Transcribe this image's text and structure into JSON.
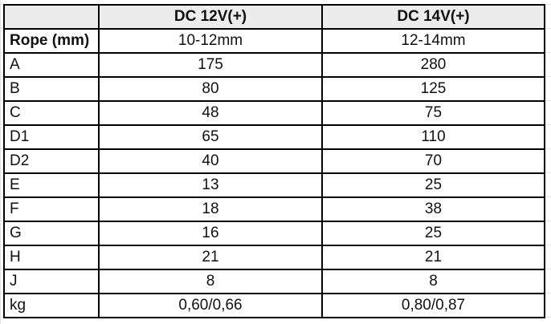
{
  "table": {
    "header": {
      "corner": "",
      "col1": "DC 12V(+)",
      "col2": "DC 14V(+)"
    },
    "rows": [
      {
        "label": "Rope (mm)",
        "v12": "10-12mm",
        "v14": "12-14mm"
      },
      {
        "label": "A",
        "v12": "175",
        "v14": "280"
      },
      {
        "label": "B",
        "v12": "80",
        "v14": "125"
      },
      {
        "label": "C",
        "v12": "48",
        "v14": "75"
      },
      {
        "label": "D1",
        "v12": "65",
        "v14": "110"
      },
      {
        "label": "D2",
        "v12": "40",
        "v14": "70"
      },
      {
        "label": "E",
        "v12": "13",
        "v14": "25"
      },
      {
        "label": "F",
        "v12": "18",
        "v14": "38"
      },
      {
        "label": "G",
        "v12": "16",
        "v14": "25"
      },
      {
        "label": "H",
        "v12": "21",
        "v14": "21"
      },
      {
        "label": "J",
        "v12": "8",
        "v14": "8"
      },
      {
        "label": "kg",
        "v12": "0,60/0,66",
        "v14": "0,80/0,87"
      }
    ]
  },
  "colors": {
    "header_background": "#ececec",
    "border": "#000000",
    "gridline": "#e3e3e3"
  }
}
